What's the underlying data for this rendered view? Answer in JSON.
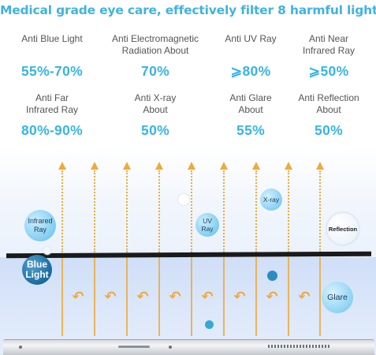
{
  "headline": "Medical grade eye care, effectively filter 8 harmful light",
  "stats": [
    {
      "label": [
        "Anti Blue Light"
      ],
      "value": "55%-70%"
    },
    {
      "label": [
        "Anti Electromagnetic",
        "Radiation About"
      ],
      "value": "70%"
    },
    {
      "label": [
        "Anti UV Ray"
      ],
      "value": "⩾80%"
    },
    {
      "label": [
        "Anti Near",
        "Infrared Ray"
      ],
      "value": "⩾50%"
    },
    {
      "label": [
        "Anti Far",
        "Infrared Ray"
      ],
      "value": "80%-90%"
    },
    {
      "label": [
        "Anti X-ray",
        "About"
      ],
      "value": "50%"
    },
    {
      "label": [
        "Anti Glare",
        "About"
      ],
      "value": "55%"
    },
    {
      "label": [
        "Anti Reflection",
        "About"
      ],
      "value": "50%"
    }
  ],
  "bubbles": {
    "infrared": [
      "Infrared",
      "Ray"
    ],
    "uv": [
      "UV",
      "Ray"
    ],
    "xray": "X-ray",
    "reflection": "Reflection",
    "blue_light": [
      "Blue",
      "Light"
    ],
    "glare": "Glare"
  },
  "colors": {
    "accent": "#38b4e2",
    "arrow": "#f0a93a",
    "filter_bar": "#1a1a1a",
    "blue_light_bubble": "#1c6a9d"
  },
  "icons": {
    "upward_arrow": "arrow-up-icon",
    "return_arrow": "u-turn-arrow-icon"
  }
}
